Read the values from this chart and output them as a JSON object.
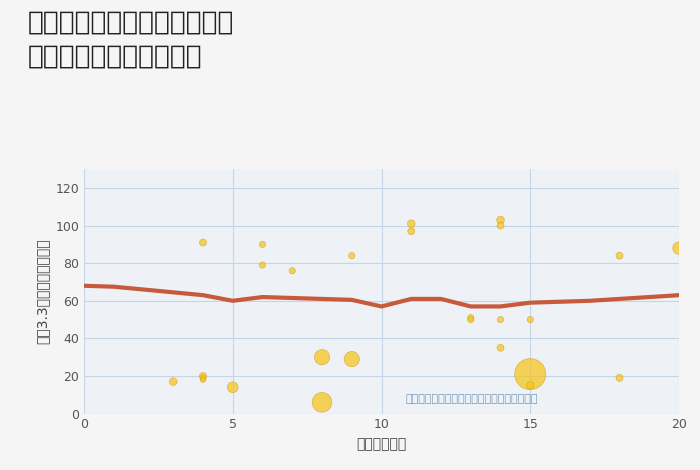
{
  "title": "岐阜県各務原市川島北山町の\n駅距離別中古戸建て価格",
  "xlabel": "駅距離（分）",
  "ylabel": "坪（3.3㎡）単価（万円）",
  "annotation": "円の大きさは、取引のあった物件面積を示す",
  "xlim": [
    0,
    20
  ],
  "ylim": [
    0,
    130
  ],
  "yticks": [
    0,
    20,
    40,
    60,
    80,
    100,
    120
  ],
  "xticks": [
    0,
    5,
    10,
    15,
    20
  ],
  "scatter_x": [
    3,
    4,
    4,
    4,
    4,
    5,
    6,
    6,
    7,
    8,
    8,
    9,
    9,
    11,
    11,
    13,
    13,
    14,
    14,
    14,
    14,
    15,
    15,
    15,
    18,
    18,
    20
  ],
  "scatter_y": [
    17,
    91,
    20,
    19,
    18,
    14,
    90,
    79,
    76,
    30,
    6,
    84,
    29,
    101,
    97,
    51,
    50,
    103,
    100,
    35,
    50,
    21,
    15,
    50,
    84,
    19,
    88
  ],
  "scatter_size": [
    30,
    25,
    25,
    20,
    15,
    60,
    20,
    20,
    20,
    120,
    200,
    20,
    120,
    30,
    25,
    20,
    20,
    30,
    25,
    25,
    20,
    500,
    30,
    20,
    25,
    25,
    80
  ],
  "scatter_color": "#F5C518",
  "scatter_alpha": 0.72,
  "scatter_edgecolor": "#D4A020",
  "trend_x": [
    0,
    1,
    2,
    3,
    4,
    5,
    6,
    7,
    8,
    9,
    10,
    11,
    12,
    13,
    14,
    15,
    16,
    17,
    18,
    19,
    20
  ],
  "trend_y": [
    68,
    67.5,
    66,
    64.5,
    63,
    60,
    62,
    61.5,
    61,
    60.5,
    57,
    61,
    61,
    57,
    57,
    59,
    59.5,
    60,
    61,
    62,
    63
  ],
  "trend_color": "#C85A3C",
  "trend_linewidth": 3.0,
  "background_color": "#f5f5f5",
  "plot_bg_color": "#eef2f7",
  "grid_color": "#c5d5e5",
  "title_fontsize": 19,
  "label_fontsize": 10,
  "tick_fontsize": 9
}
